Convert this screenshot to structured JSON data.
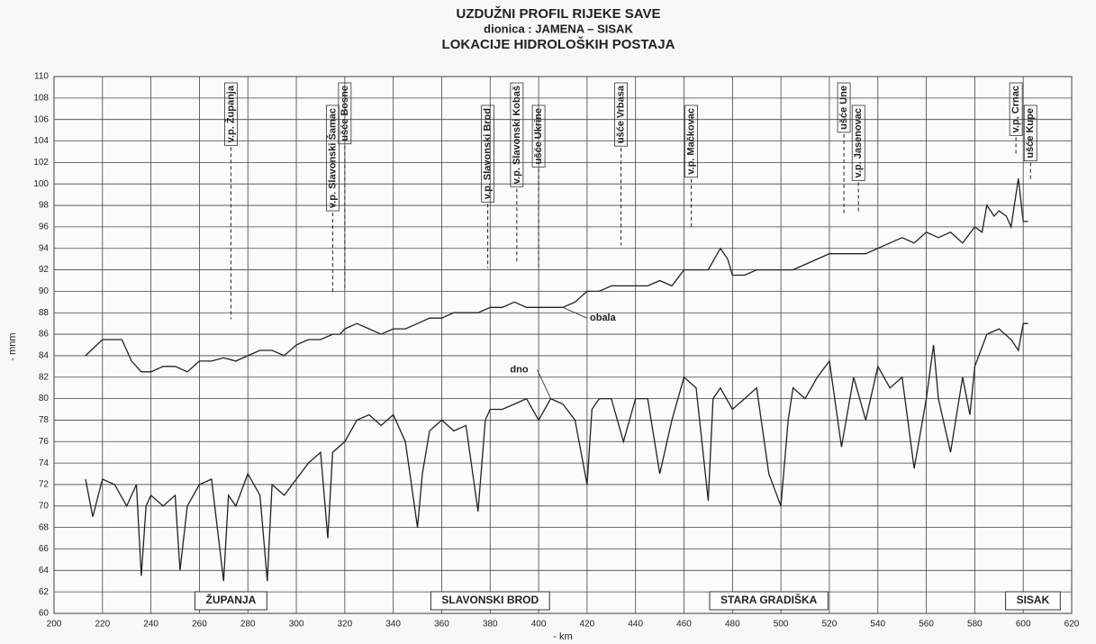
{
  "chart_data": {
    "type": "line",
    "title": "UZDUŽNI PROFIL RIJEKE SAVE",
    "subtitle": "dionica : JAMENA – SISAK",
    "subtitle2": "LOKACIJE HIDROLOŠKIH POSTAJA",
    "y_label": "- mnm",
    "x_label": "- km",
    "xlim": [
      200,
      620
    ],
    "ylim": [
      60,
      110
    ],
    "xticks": [
      200,
      220,
      240,
      260,
      280,
      300,
      320,
      340,
      360,
      380,
      400,
      420,
      440,
      460,
      480,
      500,
      520,
      540,
      560,
      580,
      600,
      620
    ],
    "yticks": [
      60,
      62,
      64,
      66,
      68,
      70,
      72,
      74,
      76,
      78,
      80,
      82,
      84,
      86,
      88,
      90,
      92,
      94,
      96,
      98,
      100,
      102,
      104,
      106,
      108,
      110
    ],
    "grid": true,
    "series": [
      {
        "name": "obala",
        "color": "#222222",
        "x": [
          213,
          220,
          228,
          232,
          236,
          240,
          245,
          250,
          255,
          260,
          265,
          270,
          275,
          280,
          285,
          290,
          295,
          300,
          305,
          310,
          315,
          318,
          320,
          325,
          330,
          335,
          340,
          345,
          350,
          355,
          360,
          365,
          370,
          375,
          380,
          385,
          390,
          395,
          400,
          405,
          410,
          415,
          420,
          425,
          430,
          435,
          440,
          445,
          450,
          455,
          460,
          465,
          470,
          475,
          478,
          480,
          485,
          490,
          495,
          500,
          505,
          510,
          515,
          520,
          525,
          530,
          535,
          540,
          545,
          550,
          555,
          560,
          565,
          570,
          575,
          580,
          583,
          585,
          588,
          590,
          593,
          595,
          598,
          600,
          602
        ],
        "values": [
          84,
          85.5,
          85.5,
          83.5,
          82.5,
          82.5,
          83,
          83,
          82.5,
          83.5,
          83.5,
          83.8,
          83.5,
          84,
          84.5,
          84.5,
          84,
          85,
          85.5,
          85.5,
          86,
          86,
          86.5,
          87,
          86.5,
          86,
          86.5,
          86.5,
          87,
          87.5,
          87.5,
          88,
          88,
          88,
          88.5,
          88.5,
          89,
          88.5,
          88.5,
          88.5,
          88.5,
          89,
          90,
          90,
          90.5,
          90.5,
          90.5,
          90.5,
          91,
          90.5,
          92,
          92,
          92,
          94,
          93,
          91.5,
          91.5,
          92,
          92,
          92,
          92,
          92.5,
          93,
          93.5,
          93.5,
          93.5,
          93.5,
          94,
          94.5,
          95,
          94.5,
          95.5,
          95,
          95.5,
          94.5,
          96,
          95.5,
          98,
          97,
          97.5,
          97,
          96,
          100.5,
          96.5,
          96.5
        ]
      },
      {
        "name": "dno",
        "color": "#222222",
        "x": [
          213,
          216,
          220,
          225,
          230,
          234,
          236,
          238,
          240,
          245,
          250,
          252,
          255,
          260,
          265,
          270,
          272,
          275,
          280,
          285,
          288,
          290,
          295,
          300,
          305,
          310,
          313,
          315,
          320,
          325,
          330,
          335,
          340,
          345,
          350,
          352,
          355,
          360,
          365,
          370,
          375,
          378,
          380,
          385,
          390,
          395,
          400,
          405,
          410,
          415,
          420,
          422,
          425,
          430,
          435,
          440,
          445,
          450,
          455,
          460,
          465,
          470,
          472,
          475,
          480,
          485,
          490,
          495,
          500,
          503,
          505,
          510,
          515,
          520,
          525,
          530,
          535,
          540,
          545,
          550,
          555,
          560,
          563,
          565,
          570,
          575,
          578,
          580,
          585,
          590,
          595,
          598,
          600,
          602
        ],
        "values": [
          72.5,
          69,
          72.5,
          72,
          70,
          72,
          63.5,
          70,
          71,
          70,
          71,
          64,
          70,
          72,
          72.5,
          63,
          71,
          70,
          73,
          71,
          63,
          72,
          71,
          72.5,
          74,
          75,
          67,
          75,
          76,
          78,
          78.5,
          77.5,
          78.5,
          76,
          68,
          73,
          77,
          78,
          77,
          77.5,
          69.5,
          78,
          79,
          79,
          79.5,
          80,
          78,
          80,
          79.5,
          78,
          72,
          79,
          80,
          80,
          76,
          80,
          80,
          73,
          78,
          82,
          81,
          70.5,
          80,
          81,
          79,
          80,
          81,
          73,
          70,
          78,
          81,
          80,
          82,
          83.5,
          75.5,
          82,
          78,
          83,
          81,
          82,
          73.5,
          80,
          85,
          80,
          75,
          82,
          78.5,
          83,
          86,
          86.5,
          85.5,
          84.5,
          87,
          87
        ]
      }
    ],
    "annotations": [
      {
        "text": "v.p. Županja",
        "x": 273
      },
      {
        "text": "v.p. Slavonski Šamac",
        "x": 315
      },
      {
        "text": "ušće Bosne",
        "x": 320
      },
      {
        "text": "v.p. Slavonski Brod",
        "x": 379
      },
      {
        "text": "v.p. Slavonski Kobaš",
        "x": 391
      },
      {
        "text": "ušće Ukrine",
        "x": 400
      },
      {
        "text": "ušće Vrbasa",
        "x": 434
      },
      {
        "text": "v.p. Mačkovac",
        "x": 463
      },
      {
        "text": "ušće Une",
        "x": 526
      },
      {
        "text": "v.p. Jasenovac",
        "x": 532
      },
      {
        "text": "v.p. Crnac",
        "x": 597
      },
      {
        "text": "ušće Kupe",
        "x": 603
      }
    ],
    "cities": [
      {
        "text": "ŽUPANJA",
        "x": 273
      },
      {
        "text": "SLAVONSKI BROD",
        "x": 380
      },
      {
        "text": "STARA GRADIŠKA",
        "x": 495
      },
      {
        "text": "SISAK",
        "x": 604
      }
    ]
  }
}
